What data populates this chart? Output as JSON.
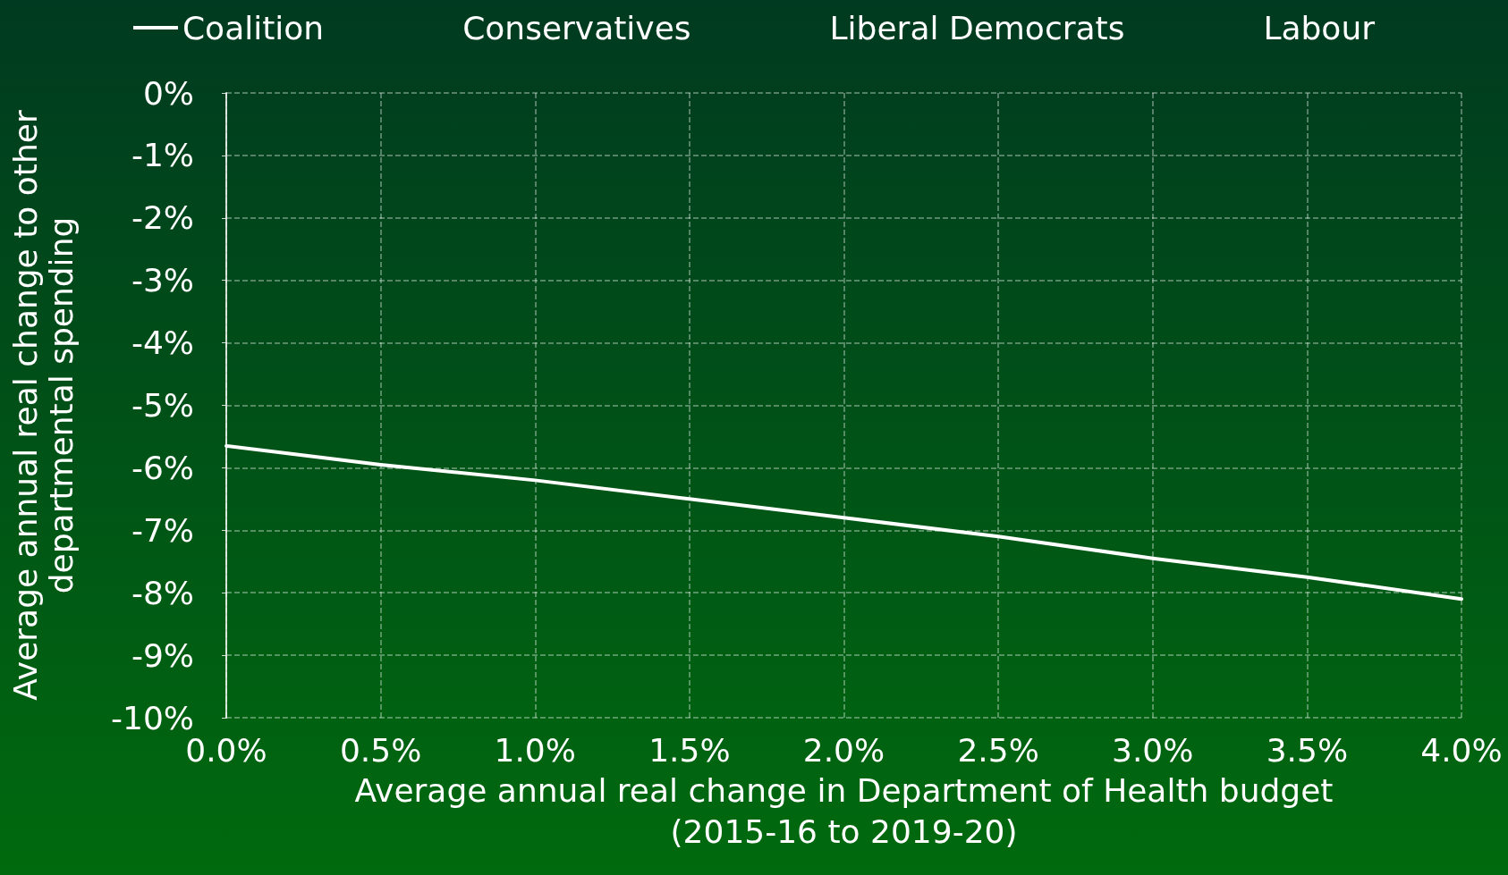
{
  "chart_data": {
    "type": "line",
    "xlabel": "Average annual real change in Department of Health budget\n(2015-16 to 2019-20)",
    "ylabel": "Average annual real change to other\ndepartmental spending",
    "x": [
      0,
      0.5,
      1,
      1.5,
      2,
      2.5,
      3,
      3.5,
      4
    ],
    "series": [
      {
        "name": "Coalition",
        "color": "#ffffff",
        "values": [
          -5.65,
          -5.95,
          -6.2,
          -6.5,
          -6.8,
          -7.1,
          -7.45,
          -7.75,
          -8.1
        ]
      },
      {
        "name": "Conservatives",
        "values": [
          null,
          null,
          null,
          null,
          null,
          null,
          null,
          null,
          null
        ]
      },
      {
        "name": "Liberal Democrats",
        "values": [
          null,
          null,
          null,
          null,
          null,
          null,
          null,
          null,
          null
        ]
      },
      {
        "name": "Labour",
        "values": [
          null,
          null,
          null,
          null,
          null,
          null,
          null,
          null,
          null
        ]
      }
    ],
    "xlim": [
      0,
      4
    ],
    "ylim": [
      -10,
      0
    ],
    "xticks": [
      {
        "value": 0,
        "label": "0.0%"
      },
      {
        "value": 0.5,
        "label": "0.5%"
      },
      {
        "value": 1,
        "label": "1.0%"
      },
      {
        "value": 1.5,
        "label": "1.5%"
      },
      {
        "value": 2,
        "label": "2.0%"
      },
      {
        "value": 2.5,
        "label": "2.5%"
      },
      {
        "value": 3,
        "label": "3.0%"
      },
      {
        "value": 3.5,
        "label": "3.5%"
      },
      {
        "value": 4,
        "label": "4.0%"
      }
    ],
    "yticks": [
      {
        "value": 0,
        "label": "0%"
      },
      {
        "value": -1,
        "label": "-1%"
      },
      {
        "value": -2,
        "label": "-2%"
      },
      {
        "value": -3,
        "label": "-3%"
      },
      {
        "value": -4,
        "label": "-4%"
      },
      {
        "value": -5,
        "label": "-5%"
      },
      {
        "value": -6,
        "label": "-6%"
      },
      {
        "value": -7,
        "label": "-7%"
      },
      {
        "value": -8,
        "label": "-8%"
      },
      {
        "value": -9,
        "label": "-9%"
      },
      {
        "value": -10,
        "label": "-10%"
      }
    ],
    "grid": true,
    "legend": "top",
    "marker": "none",
    "line_style": "solid"
  }
}
